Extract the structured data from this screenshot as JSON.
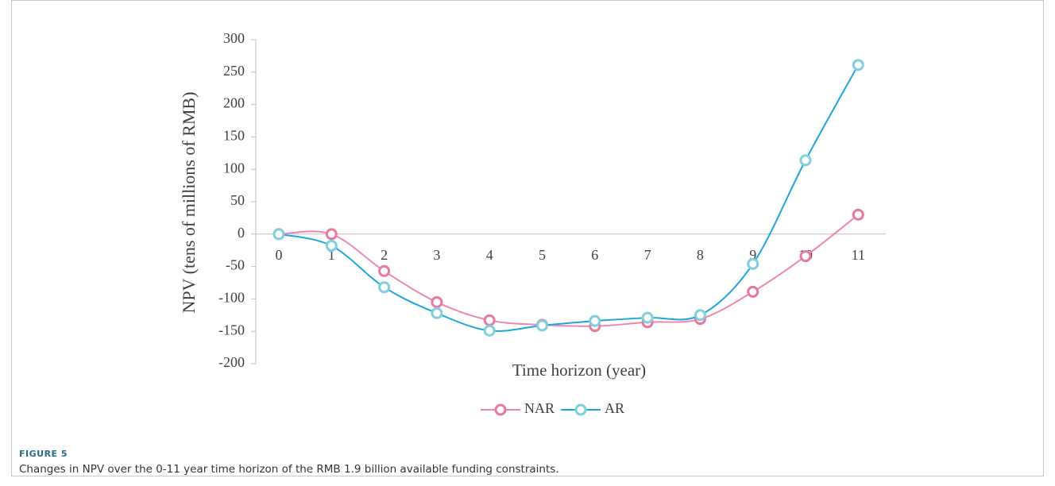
{
  "chart_data": {
    "type": "line",
    "y_label": "NPV (tens of millions of RMB)",
    "x_label": "Time horizon (year)",
    "categories": [
      "0",
      "1",
      "2",
      "3",
      "4",
      "5",
      "6",
      "7",
      "8",
      "9",
      "10",
      "11"
    ],
    "series": [
      {
        "name": "NAR",
        "color": "#ee86b2",
        "marker_color": "#e9789f",
        "values": [
          0,
          0,
          -57,
          -105,
          -133,
          -140,
          -142,
          -136,
          -131,
          -89,
          -34,
          30
        ]
      },
      {
        "name": "AR",
        "color": "#1ca6df",
        "marker_color": "#7fcfdc",
        "values": [
          0,
          -18,
          -82,
          -122,
          -149,
          -141,
          -134,
          -129,
          -125,
          -46,
          114,
          261
        ]
      }
    ],
    "ylim": [
      -200,
      300
    ],
    "yticks": [
      -200,
      -150,
      -100,
      -50,
      0,
      50,
      100,
      150,
      200,
      250,
      300
    ],
    "grid": false,
    "smooth": true,
    "legend": "bottom"
  },
  "figure": {
    "label": "FIGURE 5",
    "caption": "Changes in NPV over the 0-11 year time horizon of the RMB 1.9 billion available funding constraints."
  }
}
